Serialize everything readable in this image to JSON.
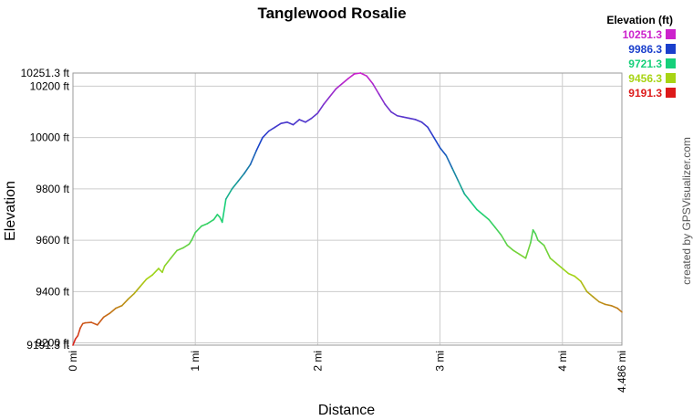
{
  "chart_data": {
    "type": "line",
    "title": "Tanglewood Rosalie",
    "xlabel": "Distance",
    "ylabel": "Elevation",
    "xlim": [
      0,
      4.486
    ],
    "ylim": [
      9191.3,
      10251.3
    ],
    "grid": true,
    "x_ticks": [
      {
        "value": 0,
        "label": "0 mi"
      },
      {
        "value": 1,
        "label": "1 mi"
      },
      {
        "value": 2,
        "label": "2 mi"
      },
      {
        "value": 3,
        "label": "3 mi"
      },
      {
        "value": 4,
        "label": "4 mi"
      },
      {
        "value": 4.486,
        "label": "4.486 mi"
      }
    ],
    "y_ticks": [
      {
        "value": 9191.3,
        "label": "9191.3 ft"
      },
      {
        "value": 9200,
        "label": "9200 ft"
      },
      {
        "value": 9400,
        "label": "9400 ft"
      },
      {
        "value": 9600,
        "label": "9600 ft"
      },
      {
        "value": 9800,
        "label": "9800 ft"
      },
      {
        "value": 10000,
        "label": "10000 ft"
      },
      {
        "value": 10200,
        "label": "10200 ft"
      },
      {
        "value": 10251.3,
        "label": "10251.3 ft"
      }
    ],
    "legend": {
      "title": "Elevation (ft)",
      "position": "top-right",
      "entries": [
        {
          "label": "10251.3",
          "color": "#cc22cc"
        },
        {
          "label": "9986.3",
          "color": "#1a3fcc"
        },
        {
          "label": "9721.3",
          "color": "#16d07a"
        },
        {
          "label": "9456.3",
          "color": "#a8d414"
        },
        {
          "label": "9191.3",
          "color": "#dd1a1a"
        }
      ]
    },
    "series": [
      {
        "color_by": "elevation",
        "x": [
          0,
          0.02,
          0.04,
          0.06,
          0.08,
          0.1,
          0.15,
          0.2,
          0.25,
          0.3,
          0.35,
          0.4,
          0.45,
          0.5,
          0.55,
          0.6,
          0.65,
          0.7,
          0.73,
          0.75,
          0.8,
          0.85,
          0.9,
          0.95,
          0.97,
          1.0,
          1.05,
          1.1,
          1.15,
          1.18,
          1.2,
          1.22,
          1.25,
          1.3,
          1.35,
          1.4,
          1.45,
          1.5,
          1.55,
          1.6,
          1.65,
          1.7,
          1.75,
          1.8,
          1.85,
          1.9,
          1.95,
          2.0,
          2.05,
          2.1,
          2.15,
          2.2,
          2.25,
          2.3,
          2.35,
          2.4,
          2.45,
          2.5,
          2.55,
          2.6,
          2.65,
          2.7,
          2.75,
          2.8,
          2.85,
          2.9,
          2.95,
          3.0,
          3.05,
          3.1,
          3.15,
          3.2,
          3.25,
          3.3,
          3.35,
          3.4,
          3.45,
          3.5,
          3.55,
          3.6,
          3.65,
          3.7,
          3.74,
          3.76,
          3.78,
          3.8,
          3.85,
          3.9,
          3.95,
          4.0,
          4.05,
          4.1,
          4.15,
          4.2,
          4.25,
          4.3,
          4.35,
          4.4,
          4.45,
          4.486
        ],
        "y": [
          9191.3,
          9215,
          9228,
          9258,
          9275,
          9278,
          9280,
          9270,
          9300,
          9315,
          9335,
          9345,
          9370,
          9392,
          9420,
          9448,
          9465,
          9490,
          9475,
          9500,
          9530,
          9560,
          9570,
          9585,
          9600,
          9630,
          9655,
          9665,
          9680,
          9700,
          9690,
          9670,
          9760,
          9800,
          9830,
          9860,
          9895,
          9950,
          10000,
          10025,
          10040,
          10055,
          10060,
          10050,
          10070,
          10060,
          10075,
          10095,
          10130,
          10160,
          10190,
          10210,
          10230,
          10248,
          10251.3,
          10240,
          10210,
          10170,
          10130,
          10100,
          10085,
          10080,
          10075,
          10070,
          10060,
          10040,
          10000,
          9960,
          9930,
          9880,
          9830,
          9780,
          9750,
          9720,
          9700,
          9680,
          9650,
          9620,
          9580,
          9560,
          9545,
          9530,
          9590,
          9640,
          9625,
          9600,
          9580,
          9530,
          9510,
          9490,
          9470,
          9460,
          9440,
          9400,
          9380,
          9360,
          9350,
          9345,
          9335,
          9320
        ]
      }
    ]
  },
  "credit": "created by GPSVisualizer.com"
}
